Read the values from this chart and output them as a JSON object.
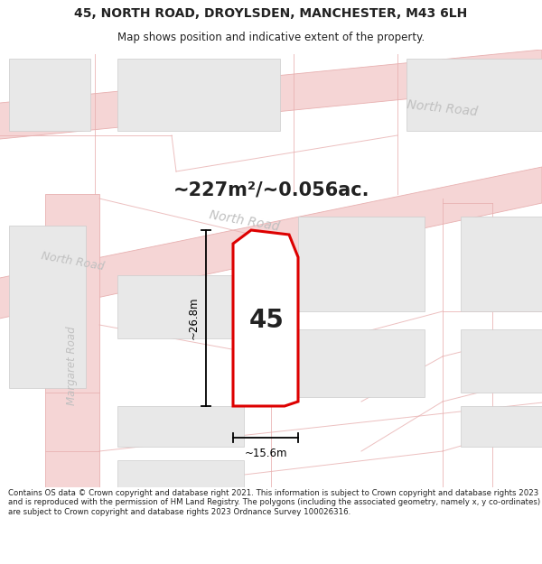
{
  "title_line1": "45, NORTH ROAD, DROYLSDEN, MANCHESTER, M43 6LH",
  "title_line2": "Map shows position and indicative extent of the property.",
  "area_text": "~227m²/~0.056ac.",
  "label_45": "45",
  "dim_width": "~15.6m",
  "dim_height": "~26.8m",
  "road_label_north_upper": "North Road",
  "road_label_north_lower": "North Road",
  "road_label_margaret": "Margaret Road",
  "footer_text": "Contains OS data © Crown copyright and database right 2021. This information is subject to Crown copyright and database rights 2023 and is reproduced with the permission of HM Land Registry. The polygons (including the associated geometry, namely x, y co-ordinates) are subject to Crown copyright and database rights 2023 Ordnance Survey 100026316.",
  "bg_color": "#f8f8f8",
  "map_bg": "#ffffff",
  "road_fill_color": "#f5d5d5",
  "road_edge_color": "#e8b0b0",
  "plot_line_color": "#e8b0b0",
  "property_edge_color": "#dd0000",
  "building_color": "#e8e8e8",
  "building_edge_color": "#cccccc",
  "text_color": "#222222",
  "road_text_color": "#c0c0c0",
  "dim_color": "#000000",
  "white": "#ffffff"
}
